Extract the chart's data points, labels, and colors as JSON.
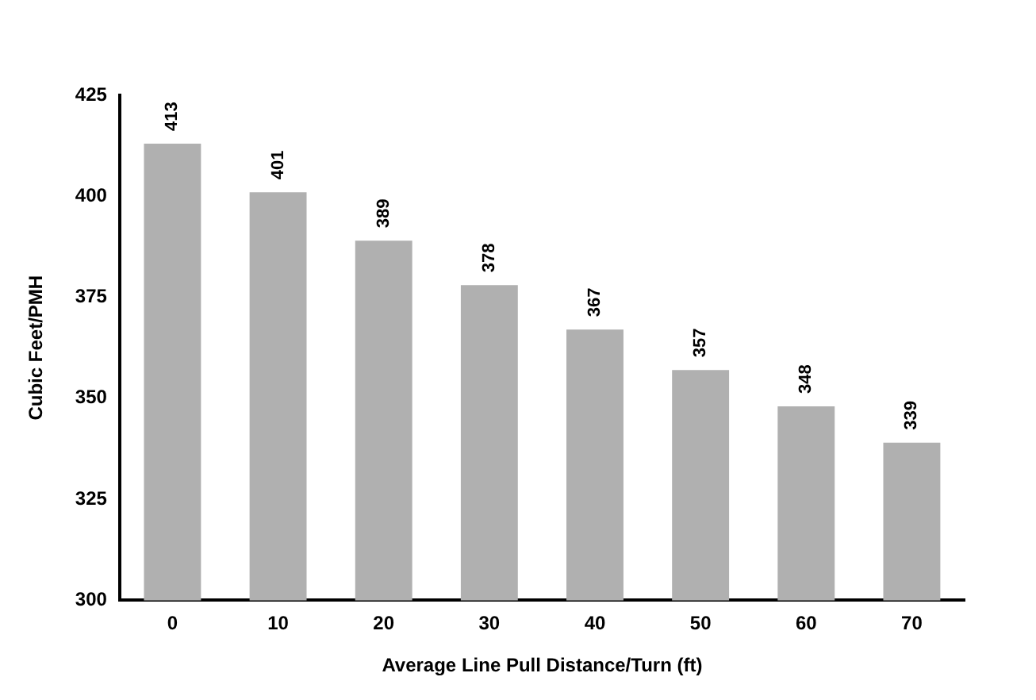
{
  "chart_data": {
    "type": "bar",
    "xlabel": "Average Line Pull Distance/Turn (ft)",
    "ylabel": "Cubic Feet/PMH",
    "categories": [
      "0",
      "10",
      "20",
      "30",
      "40",
      "50",
      "60",
      "70"
    ],
    "values": [
      413,
      401,
      389,
      378,
      367,
      357,
      348,
      339
    ],
    "color": "#b0b0b0",
    "ylim": [
      300,
      425
    ],
    "yticks": [
      300,
      325,
      350,
      375,
      400,
      425
    ],
    "grid": false,
    "data_labels": true,
    "legend": false
  }
}
